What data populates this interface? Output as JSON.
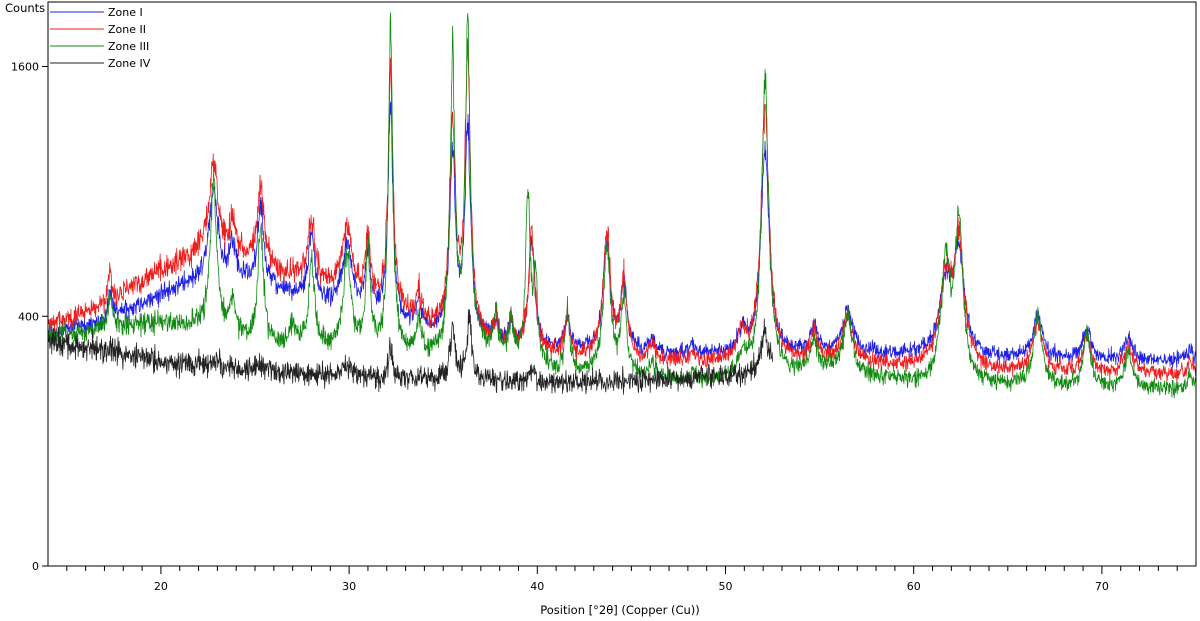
{
  "chart_data": {
    "type": "line",
    "title": "",
    "ylabel": "Counts",
    "xlabel": "Position [°2θ] (Copper (Cu))",
    "xlim": [
      14,
      75
    ],
    "ylim": [
      0,
      2040
    ],
    "x_ticks": [
      20,
      30,
      40,
      50,
      60,
      70
    ],
    "y_ticks": [
      0,
      400,
      1600
    ],
    "y_scale": "sqrt",
    "grid": false,
    "legend": {
      "placement": "top-left",
      "entries": [
        "Zone I",
        "Zone II",
        "Zone III",
        "Zone IV"
      ]
    },
    "series": [
      {
        "name": "Zone I",
        "color": "#1f1fe6",
        "noise": 0.035,
        "background": [
          [
            14,
            345
          ],
          [
            17,
            385
          ],
          [
            20,
            470
          ],
          [
            22.5,
            535
          ],
          [
            24,
            525
          ],
          [
            27,
            470
          ],
          [
            30,
            420
          ],
          [
            33,
            370
          ],
          [
            35,
            340
          ],
          [
            37,
            330
          ],
          [
            40,
            300
          ],
          [
            44,
            290
          ],
          [
            48,
            285
          ],
          [
            52,
            285
          ],
          [
            56,
            290
          ],
          [
            60,
            285
          ],
          [
            64,
            275
          ],
          [
            70,
            270
          ],
          [
            75,
            270
          ]
        ],
        "peaks": [
          [
            17.3,
            90,
            0.12
          ],
          [
            22.8,
            380,
            0.25
          ],
          [
            23.8,
            120,
            0.2
          ],
          [
            25.3,
            330,
            0.18
          ],
          [
            28.0,
            240,
            0.2
          ],
          [
            29.9,
            240,
            0.3
          ],
          [
            31.0,
            230,
            0.15
          ],
          [
            32.2,
            1000,
            0.13
          ],
          [
            33.7,
            90,
            0.15
          ],
          [
            35.5,
            770,
            0.16
          ],
          [
            36.3,
            920,
            0.15
          ],
          [
            37.8,
            60,
            0.12
          ],
          [
            38.6,
            70,
            0.12
          ],
          [
            39.7,
            360,
            0.18
          ],
          [
            41.6,
            100,
            0.15
          ],
          [
            43.7,
            380,
            0.22
          ],
          [
            44.6,
            220,
            0.18
          ],
          [
            46.1,
            40,
            0.2
          ],
          [
            48.2,
            25,
            0.2
          ],
          [
            50.9,
            60,
            0.3
          ],
          [
            52.1,
            840,
            0.22
          ],
          [
            54.7,
            80,
            0.2
          ],
          [
            56.5,
            120,
            0.3
          ],
          [
            61.7,
            230,
            0.35
          ],
          [
            62.4,
            350,
            0.3
          ],
          [
            66.6,
            120,
            0.3
          ],
          [
            69.2,
            90,
            0.25
          ],
          [
            71.4,
            60,
            0.3
          ],
          [
            74.7,
            30,
            0.2
          ]
        ]
      },
      {
        "name": "Zone II",
        "color": "#ee1c1c",
        "noise": 0.04,
        "background": [
          [
            14,
            375
          ],
          [
            17,
            430
          ],
          [
            20,
            560
          ],
          [
            22.5,
            640
          ],
          [
            24,
            610
          ],
          [
            27,
            540
          ],
          [
            30,
            470
          ],
          [
            33,
            395
          ],
          [
            35,
            350
          ],
          [
            37,
            320
          ],
          [
            40,
            285
          ],
          [
            44,
            270
          ],
          [
            48,
            262
          ],
          [
            52,
            262
          ],
          [
            56,
            268
          ],
          [
            60,
            250
          ],
          [
            64,
            240
          ],
          [
            70,
            235
          ],
          [
            75,
            235
          ]
        ],
        "peaks": [
          [
            17.3,
            110,
            0.12
          ],
          [
            22.8,
            400,
            0.25
          ],
          [
            23.8,
            150,
            0.2
          ],
          [
            25.3,
            370,
            0.18
          ],
          [
            28.0,
            250,
            0.2
          ],
          [
            29.9,
            250,
            0.3
          ],
          [
            31.0,
            250,
            0.15
          ],
          [
            32.2,
            1150,
            0.13
          ],
          [
            33.7,
            100,
            0.15
          ],
          [
            35.5,
            920,
            0.16
          ],
          [
            36.3,
            1350,
            0.15
          ],
          [
            37.8,
            70,
            0.12
          ],
          [
            38.6,
            80,
            0.12
          ],
          [
            39.7,
            420,
            0.18
          ],
          [
            41.6,
            110,
            0.15
          ],
          [
            43.7,
            440,
            0.22
          ],
          [
            44.6,
            250,
            0.18
          ],
          [
            46.1,
            45,
            0.2
          ],
          [
            48.2,
            25,
            0.2
          ],
          [
            50.9,
            70,
            0.3
          ],
          [
            52.1,
            1080,
            0.22
          ],
          [
            54.7,
            90,
            0.2
          ],
          [
            56.5,
            130,
            0.3
          ],
          [
            61.7,
            270,
            0.35
          ],
          [
            62.4,
            420,
            0.3
          ],
          [
            66.6,
            140,
            0.3
          ],
          [
            69.2,
            100,
            0.25
          ],
          [
            71.4,
            70,
            0.3
          ],
          [
            74.7,
            30,
            0.2
          ]
        ]
      },
      {
        "name": "Zone III",
        "color": "#118a11",
        "noise": 0.045,
        "background": [
          [
            14,
            340
          ],
          [
            17,
            360
          ],
          [
            20,
            380
          ],
          [
            22.5,
            360
          ],
          [
            25,
            310
          ],
          [
            28,
            300
          ],
          [
            30,
            300
          ],
          [
            33,
            280
          ],
          [
            35,
            275
          ],
          [
            37,
            300
          ],
          [
            38,
            295
          ],
          [
            40,
            245
          ],
          [
            44,
            230
          ],
          [
            48,
            215
          ],
          [
            52,
            225
          ],
          [
            56,
            245
          ],
          [
            60,
            210
          ],
          [
            64,
            205
          ],
          [
            70,
            200
          ],
          [
            75,
            200
          ]
        ],
        "peaks": [
          [
            17.3,
            110,
            0.12
          ],
          [
            22.8,
            600,
            0.18
          ],
          [
            23.8,
            120,
            0.18
          ],
          [
            25.3,
            440,
            0.16
          ],
          [
            27.0,
            60,
            0.2
          ],
          [
            28.0,
            280,
            0.18
          ],
          [
            29.9,
            330,
            0.2
          ],
          [
            31.0,
            350,
            0.13
          ],
          [
            32.2,
            1600,
            0.11
          ],
          [
            33.7,
            100,
            0.15
          ],
          [
            35.5,
            1400,
            0.13
          ],
          [
            36.3,
            1650,
            0.12
          ],
          [
            37.8,
            120,
            0.1
          ],
          [
            38.6,
            100,
            0.1
          ],
          [
            39.5,
            650,
            0.12
          ],
          [
            39.9,
            300,
            0.12
          ],
          [
            41.6,
            180,
            0.12
          ],
          [
            43.7,
            420,
            0.2
          ],
          [
            44.6,
            240,
            0.16
          ],
          [
            46.1,
            40,
            0.2
          ],
          [
            48.2,
            20,
            0.2
          ],
          [
            50.9,
            50,
            0.3
          ],
          [
            52.1,
            1350,
            0.18
          ],
          [
            54.7,
            100,
            0.18
          ],
          [
            56.5,
            160,
            0.25
          ],
          [
            61.7,
            400,
            0.25
          ],
          [
            62.4,
            550,
            0.22
          ],
          [
            66.6,
            200,
            0.25
          ],
          [
            69.2,
            140,
            0.22
          ],
          [
            71.4,
            90,
            0.25
          ],
          [
            74.7,
            30,
            0.2
          ]
        ]
      },
      {
        "name": "Zone IV",
        "color": "#222222",
        "noise": 0.06,
        "background": [
          [
            14,
            325
          ],
          [
            17,
            300
          ],
          [
            20,
            270
          ],
          [
            24,
            250
          ],
          [
            28,
            235
          ],
          [
            32,
            225
          ],
          [
            36,
            225
          ],
          [
            40,
            215
          ],
          [
            44,
            220
          ],
          [
            48,
            225
          ],
          [
            51,
            235
          ],
          [
            52.5,
            245
          ]
        ],
        "peaks": [
          [
            22.9,
            15,
            0.3
          ],
          [
            25.3,
            20,
            0.3
          ],
          [
            29.9,
            25,
            0.3
          ],
          [
            32.2,
            90,
            0.12
          ],
          [
            35.5,
            160,
            0.14
          ],
          [
            36.4,
            170,
            0.14
          ],
          [
            39.7,
            30,
            0.2
          ],
          [
            52.1,
            110,
            0.2
          ]
        ]
      }
    ]
  }
}
